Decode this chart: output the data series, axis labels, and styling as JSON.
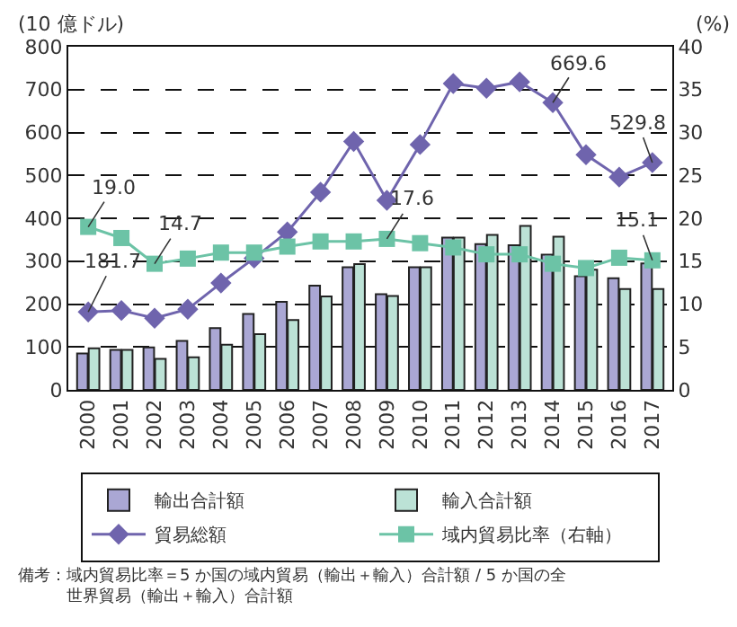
{
  "chart_data": {
    "type": "bar",
    "ylabel": "(10 億ドル)",
    "y2label": "(%)",
    "categories": [
      "2000",
      "2001",
      "2002",
      "2003",
      "2004",
      "2005",
      "2006",
      "2007",
      "2008",
      "2009",
      "2010",
      "2011",
      "2012",
      "2013",
      "2014",
      "2015",
      "2016",
      "2017"
    ],
    "series": [
      {
        "name": "輸出合計額",
        "color": "#aaa7d4",
        "values": [
          85,
          93,
          99,
          114,
          144,
          177,
          205,
          243,
          286,
          223,
          286,
          355,
          340,
          337,
          315,
          265,
          260,
          295
        ]
      },
      {
        "name": "輸入合計額",
        "color": "#bce2d6",
        "values": [
          97,
          93,
          72,
          76,
          105,
          130,
          163,
          218,
          293,
          219,
          286,
          355,
          361,
          382,
          357,
          280,
          235,
          235
        ]
      },
      {
        "name": "貿易総額",
        "type": "line",
        "color": "#6f64ad",
        "marker": "diamond",
        "values": [
          181.7,
          185,
          167,
          188,
          249,
          307,
          368,
          461,
          579,
          442,
          572,
          714,
          703,
          718,
          669.6,
          548,
          496,
          529.8
        ],
        "value_labels": [
          "181.7",
          null,
          null,
          null,
          null,
          null,
          null,
          null,
          null,
          null,
          null,
          null,
          null,
          null,
          "669.6",
          null,
          null,
          "529.8"
        ]
      },
      {
        "name": "域内貿易比率（右軸）",
        "type": "line",
        "axis": "y2",
        "color": "#6cc3a6",
        "marker": "square",
        "values": [
          19.0,
          17.7,
          14.7,
          15.3,
          16.0,
          16.0,
          16.7,
          17.3,
          17.3,
          17.6,
          17.1,
          16.6,
          15.8,
          15.8,
          14.7,
          14.2,
          15.4,
          15.1
        ],
        "value_labels": [
          "19.0",
          null,
          "14.7",
          null,
          null,
          null,
          null,
          null,
          null,
          "17.6",
          null,
          null,
          null,
          null,
          null,
          null,
          null,
          "15.1"
        ]
      }
    ],
    "ylim": [
      0,
      800
    ],
    "yticks": [
      0,
      100,
      200,
      300,
      400,
      500,
      600,
      700,
      800
    ],
    "y2lim": [
      0,
      40
    ],
    "y2ticks": [
      0,
      5,
      10,
      15,
      20,
      25,
      30,
      35,
      40
    ],
    "grid": "y",
    "legend": "bottom",
    "annotations": [
      "備考：域内貿易比率＝5 か国の域内貿易（輸出＋輸入）合計額 / 5 か国の全世界貿易（輸出＋輸入）合計額"
    ]
  }
}
